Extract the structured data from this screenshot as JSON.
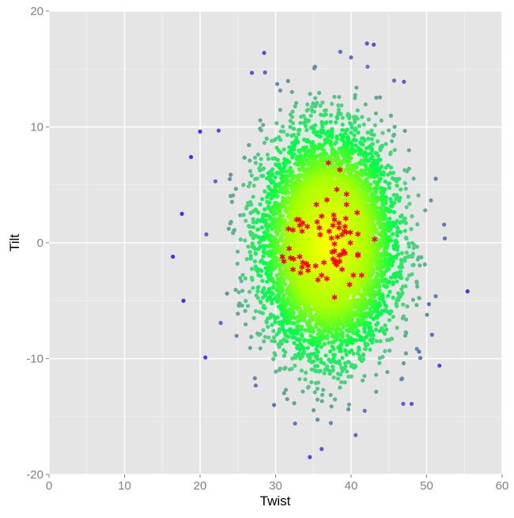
{
  "chart_data": {
    "type": "scatter",
    "title": "",
    "xlabel": "Twist",
    "ylabel": "Tilt",
    "xlim": [
      0,
      60
    ],
    "ylim": [
      -20,
      20
    ],
    "x_ticks": [
      0,
      10,
      20,
      30,
      40,
      50,
      60
    ],
    "y_ticks": [
      -20,
      -10,
      0,
      10,
      20
    ],
    "x_tick_labels": [
      "0",
      "10",
      "20",
      "30",
      "40",
      "50",
      "60"
    ],
    "y_tick_labels": [
      "-20",
      "-10",
      "0",
      "10",
      "20"
    ],
    "grid": true,
    "background": "#e5e5e5",
    "colors": {
      "density_high": "#ffff00",
      "density_mid": "#00ff44",
      "density_low": "#6a9a9a",
      "density_lowest": "#5533ee",
      "highlight": "#ff0000"
    },
    "highlight_points": [
      [
        37.0,
        6.9
      ],
      [
        38.5,
        6.3
      ],
      [
        38.1,
        4.6
      ],
      [
        39.4,
        4.2
      ],
      [
        36.8,
        3.7
      ],
      [
        35.4,
        3.3
      ],
      [
        39.4,
        3.3
      ],
      [
        40.8,
        2.6
      ],
      [
        36.1,
        2.3
      ],
      [
        37.7,
        2.4
      ],
      [
        32.8,
        2.0
      ],
      [
        33.1,
        2.0
      ],
      [
        37.8,
        2.0
      ],
      [
        39.3,
        2.1
      ],
      [
        33.6,
        1.7
      ],
      [
        35.5,
        1.8
      ],
      [
        38.4,
        1.7
      ],
      [
        33.2,
        1.5
      ],
      [
        34.2,
        1.4
      ],
      [
        35.8,
        1.3
      ],
      [
        37.6,
        1.5
      ],
      [
        39.2,
        1.4
      ],
      [
        31.7,
        1.2
      ],
      [
        32.3,
        1.1
      ],
      [
        33.5,
        1.0
      ],
      [
        38.4,
        1.3
      ],
      [
        37.1,
        1.0
      ],
      [
        39.1,
        1.0
      ],
      [
        39.4,
        0.9
      ],
      [
        39.9,
        0.9
      ],
      [
        40.9,
        0.75
      ],
      [
        35.9,
        0.7
      ],
      [
        38.8,
        0.7
      ],
      [
        38.2,
        0.5
      ],
      [
        37.4,
        0.4
      ],
      [
        43.1,
        0.3
      ],
      [
        39.9,
        0.0
      ],
      [
        37.8,
        -0.1
      ],
      [
        31.8,
        -0.5
      ],
      [
        37.8,
        -0.7
      ],
      [
        37.5,
        -0.8
      ],
      [
        39.0,
        -0.7
      ],
      [
        39.2,
        -0.9
      ],
      [
        40.9,
        -1.0
      ],
      [
        40.9,
        -1.1
      ],
      [
        30.9,
        -1.2
      ],
      [
        32.0,
        -1.3
      ],
      [
        32.4,
        -1.4
      ],
      [
        33.2,
        -1.2
      ],
      [
        38.4,
        -1.1
      ],
      [
        38.7,
        -1.0
      ],
      [
        37.6,
        -1.4
      ],
      [
        31.1,
        -1.6
      ],
      [
        33.6,
        -1.7
      ],
      [
        34.1,
        -1.8
      ],
      [
        36.4,
        -1.7
      ],
      [
        38.0,
        -1.6
      ],
      [
        38.5,
        -1.6
      ],
      [
        35.3,
        -2.0
      ],
      [
        37.8,
        -1.7
      ],
      [
        38.1,
        -1.9
      ],
      [
        33.5,
        -2.1
      ],
      [
        34.3,
        -2.0
      ],
      [
        32.3,
        -2.3
      ],
      [
        38.8,
        -2.3
      ],
      [
        34.3,
        -2.4
      ],
      [
        33.3,
        -2.6
      ],
      [
        36.1,
        -2.8
      ],
      [
        40.3,
        -2.8
      ],
      [
        41.4,
        -2.8
      ],
      [
        36.8,
        -3.1
      ],
      [
        35.6,
        -3.2
      ],
      [
        39.8,
        -3.6
      ],
      [
        37.8,
        -4.7
      ]
    ],
    "outlier_points": [
      [
        42.1,
        17.2
      ],
      [
        43.0,
        17.1
      ],
      [
        40.0,
        16.0
      ],
      [
        28.6,
        14.7
      ],
      [
        45.7,
        14.0
      ],
      [
        47.0,
        13.9
      ],
      [
        20.0,
        9.6
      ],
      [
        18.8,
        7.4
      ],
      [
        17.6,
        2.5
      ],
      [
        16.4,
        -1.2
      ],
      [
        17.8,
        -5.0
      ],
      [
        50.3,
        -5.3
      ],
      [
        51.7,
        -10.6
      ],
      [
        29.8,
        -14.0
      ],
      [
        36.1,
        -17.8
      ],
      [
        40.6,
        -16.6
      ],
      [
        46.9,
        -13.9
      ],
      [
        41.8,
        -14.5
      ],
      [
        49.0,
        -9.4
      ],
      [
        20.7,
        -9.9
      ]
    ]
  }
}
